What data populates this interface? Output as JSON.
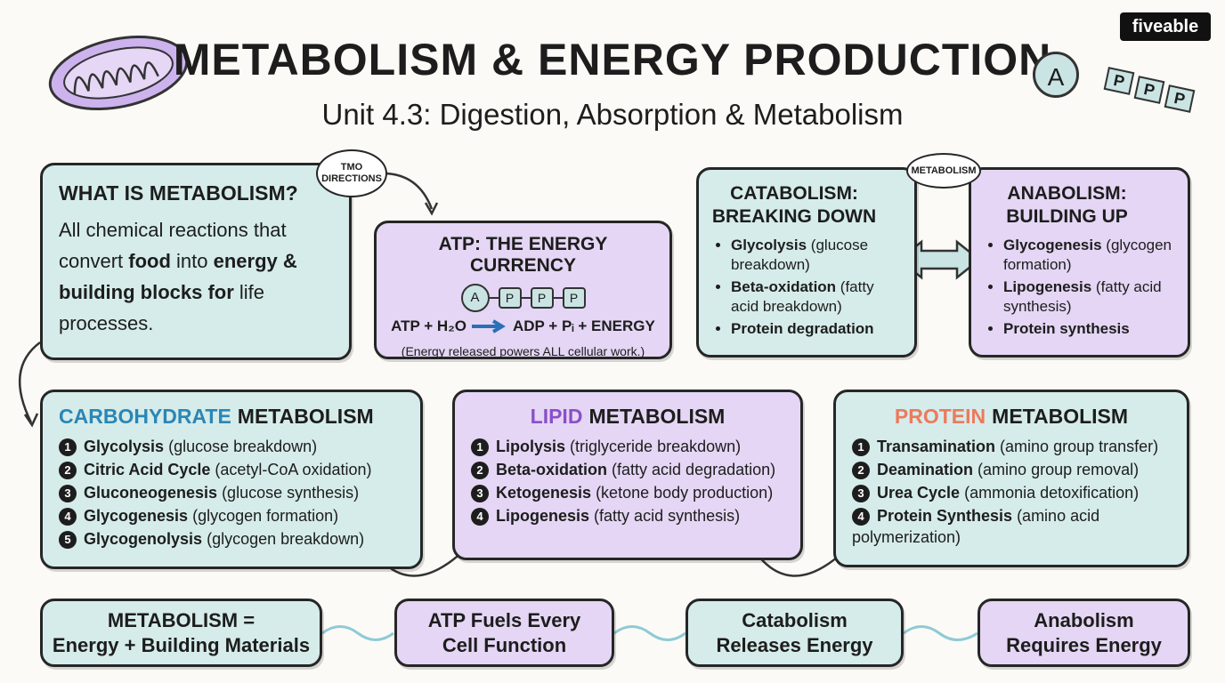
{
  "header": {
    "title": "METABOLISM & ENERGY PRODUCTION",
    "subtitle": "Unit 4.3: Digestion, Absorption & Metabolism",
    "brand": "fiveable",
    "atp_icon": [
      "A",
      "P",
      "P",
      "P"
    ]
  },
  "what_is": {
    "bubble": "TMO DIRECTIONS",
    "title": "WHAT IS METABOLISM?",
    "body": [
      {
        "text": "All chemical reactions that convert "
      },
      {
        "text": "food",
        "bold": true
      },
      {
        "text": " into "
      },
      {
        "text": "energy",
        "bold": true
      },
      {
        "text": " & building blocks for",
        "bold": true
      },
      {
        "text": " life processes."
      }
    ]
  },
  "atp": {
    "title": "ATP: THE ENERGY CURRENCY",
    "chain": [
      "A",
      "P",
      "P",
      "P"
    ],
    "equation_left": "ATP + H₂O",
    "equation_right": "ADP + Pᵢ + ENERGY",
    "note": "(Energy released powers ALL cellular work.)"
  },
  "pathways": {
    "bubble": "METABOLISM",
    "catabolism": {
      "title": [
        "CATABOLISM:",
        "BREAKING DOWN"
      ],
      "items": [
        {
          "name": "Glycolysis",
          "desc": "(glucose breakdown)"
        },
        {
          "name": "Beta-oxidation",
          "desc": "(fatty acid breakdown)"
        },
        {
          "name": "Protein degradation"
        }
      ]
    },
    "anabolism": {
      "title": [
        "ANABOLISM:",
        "BUILDING UP"
      ],
      "items": [
        {
          "name": "Glycogenesis",
          "desc": "(glycogen formation)"
        },
        {
          "name": "Lipogenesis",
          "desc": "(fatty acid synthesis)"
        },
        {
          "name": "Protein synthesis"
        }
      ]
    }
  },
  "metabolism_cards": [
    {
      "title_accent": "CARBOHYDRATE",
      "title_rest": "METABOLISM",
      "accent_color": "#2b86b5",
      "items": [
        {
          "num": "1",
          "name": "Glycolysis",
          "desc": "(glucose breakdown)"
        },
        {
          "num": "2",
          "name": "Citric Acid Cycle",
          "desc": "(acetyl-CoA oxidation)"
        },
        {
          "num": "3",
          "name": "Gluconeogenesis",
          "desc": "(glucose synthesis)"
        },
        {
          "num": "4",
          "name": "Glycogenesis",
          "desc": "(glycogen formation)"
        },
        {
          "num": "5",
          "name": "Glycogenolysis",
          "desc": "(glycogen breakdown)"
        }
      ]
    },
    {
      "title_accent": "LIPID",
      "title_rest": "METABOLISM",
      "accent_color": "#8a4fc9",
      "items": [
        {
          "num": "1",
          "name": "Lipolysis",
          "desc": "(triglyceride breakdown)"
        },
        {
          "num": "2",
          "name": "Beta-oxidation",
          "desc": "(fatty acid degradation)"
        },
        {
          "num": "3",
          "name": "Ketogenesis",
          "desc": "(ketone body production)"
        },
        {
          "num": "4",
          "name": "Lipogenesis",
          "desc": "(fatty acid synthesis)"
        }
      ]
    },
    {
      "title_accent": "PROTEIN",
      "title_rest": "METABOLISM",
      "accent_color": "#ec7a5c",
      "items": [
        {
          "num": "1",
          "name": "Transamination",
          "desc": "(amino group transfer)"
        },
        {
          "num": "2",
          "name": "Deamination",
          "desc": "(amino group removal)"
        },
        {
          "num": "3",
          "name": "Urea Cycle",
          "desc": "(ammonia detoxification)"
        },
        {
          "num": "4",
          "name": "Protein Synthesis",
          "desc": "(amino acid polymerization)"
        }
      ]
    }
  ],
  "summary": [
    {
      "lines": [
        "METABOLISM =",
        "Energy + Building Materials"
      ]
    },
    {
      "lines": [
        "ATP Fuels Every",
        "Cell Function"
      ]
    },
    {
      "lines": [
        "Catabolism",
        "Releases Energy"
      ]
    },
    {
      "lines": [
        "Anabolism",
        "Requires Energy"
      ]
    }
  ]
}
